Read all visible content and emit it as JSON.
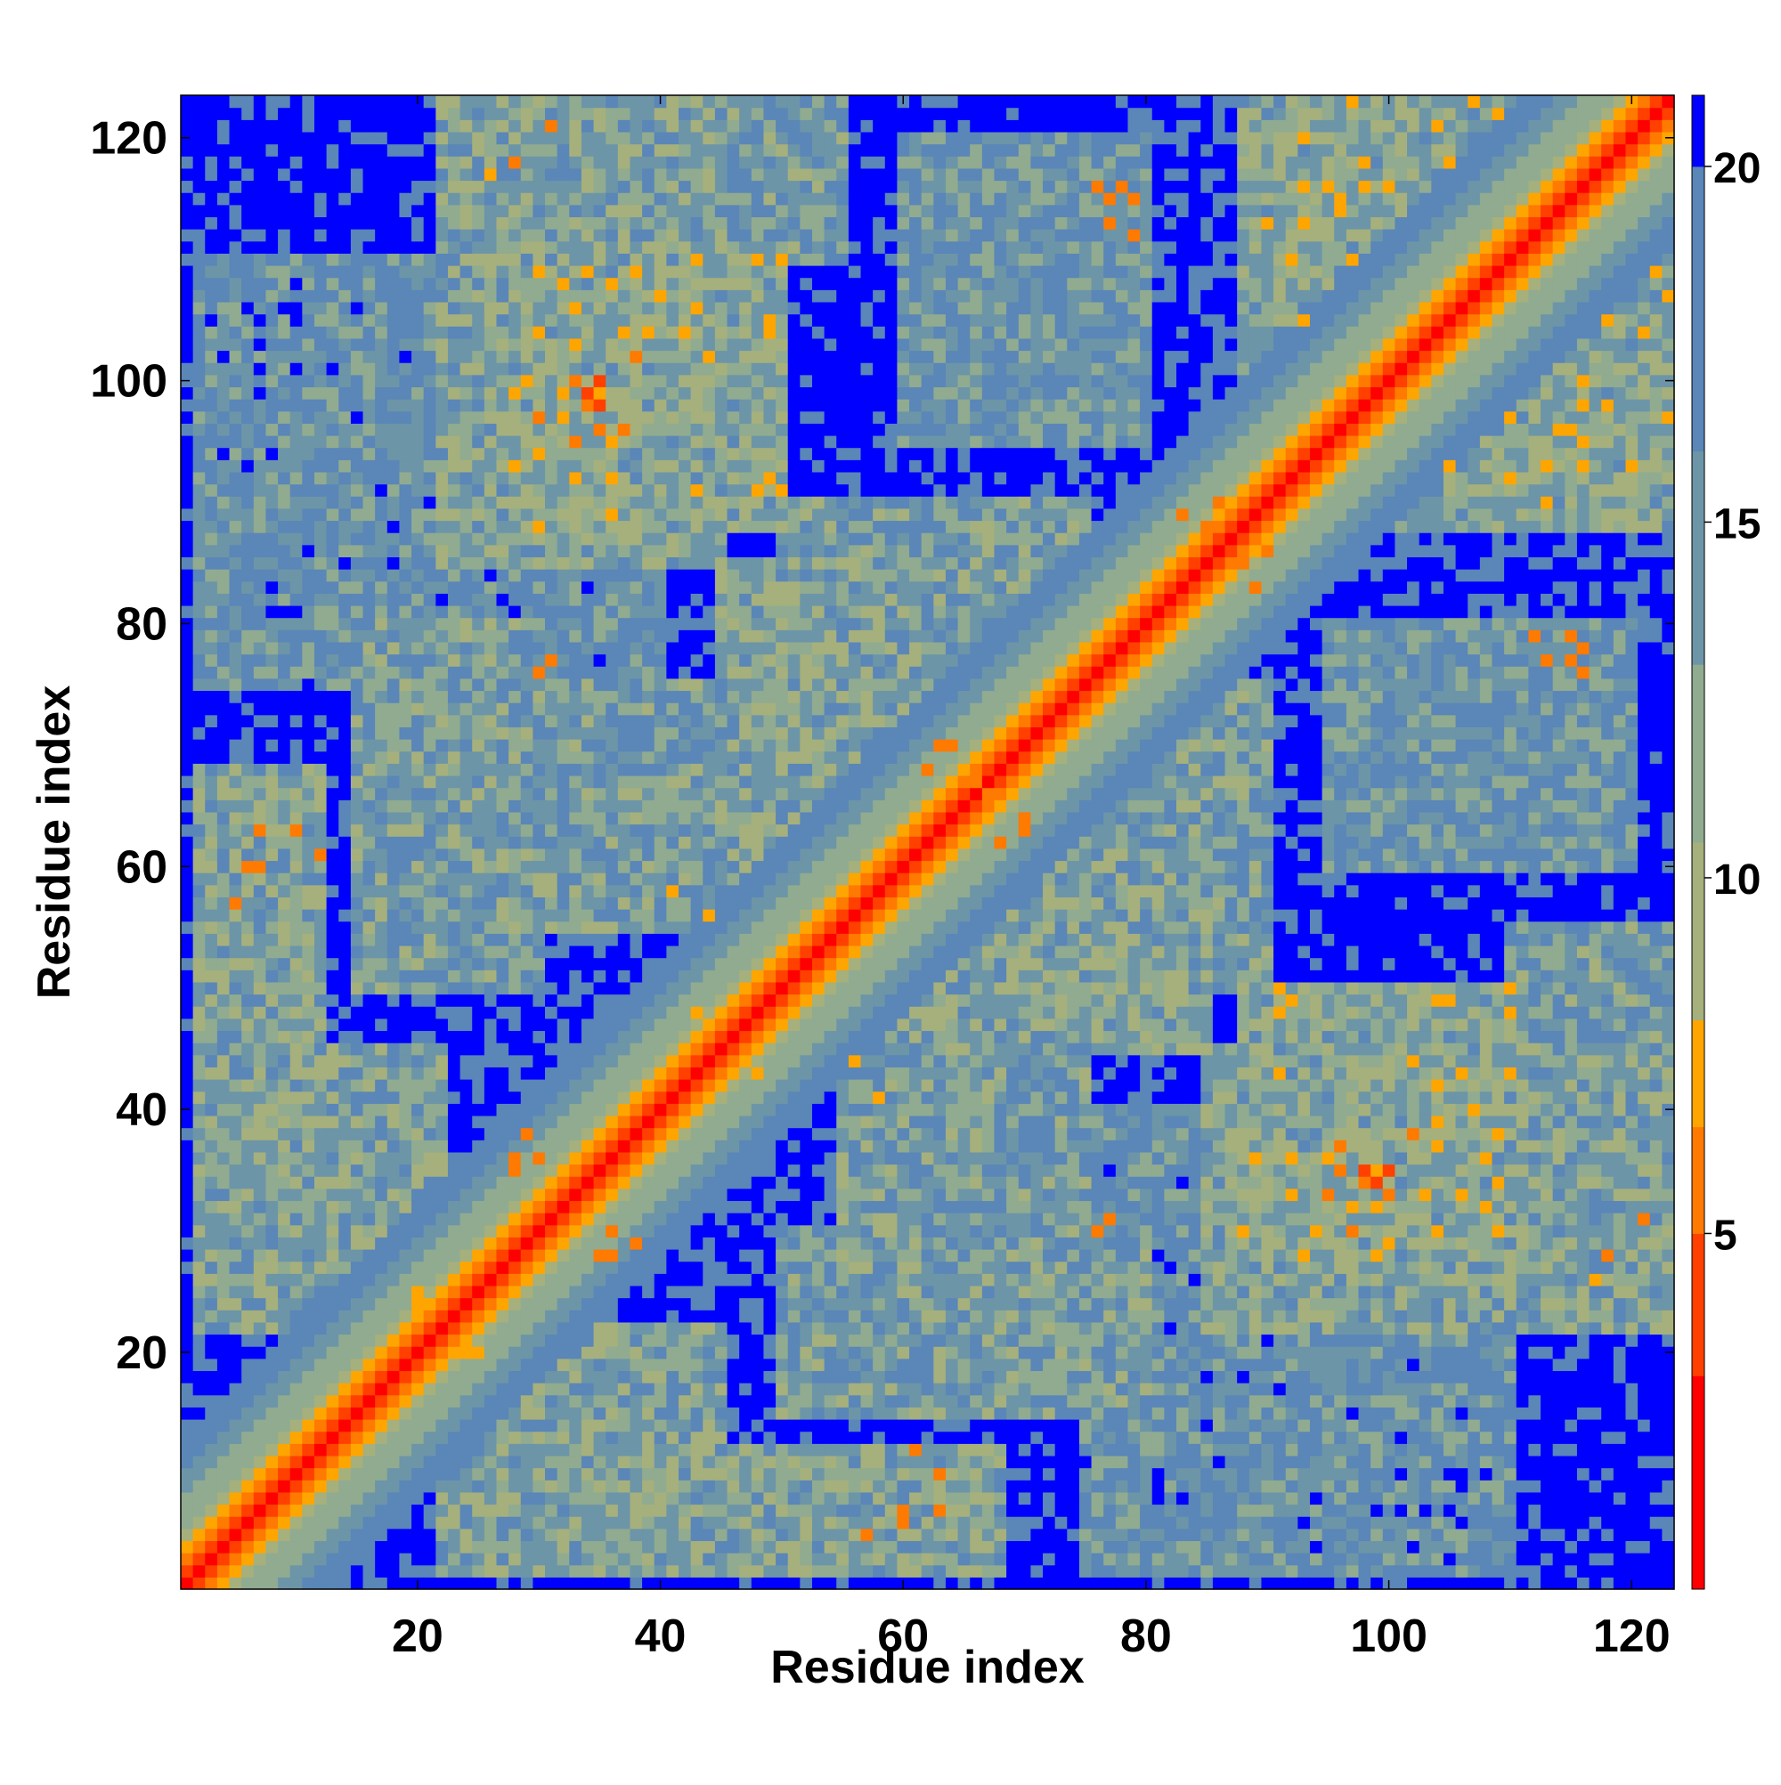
{
  "chart_data": {
    "type": "heatmap",
    "title": "",
    "xlabel": "Residue index",
    "ylabel": "Residue index",
    "n_residues": 123,
    "xlim": [
      0.5,
      123.5
    ],
    "ylim": [
      0.5,
      123.5
    ],
    "x_ticks": [
      20,
      40,
      60,
      80,
      100,
      120
    ],
    "y_ticks": [
      20,
      40,
      60,
      80,
      100,
      120
    ],
    "x_tick_labels": [
      "20",
      "40",
      "60",
      "80",
      "100",
      "120"
    ],
    "y_tick_labels": [
      "20",
      "40",
      "60",
      "80",
      "100",
      "120"
    ],
    "colorbar": {
      "range": [
        0,
        21
      ],
      "ticks": [
        5,
        10,
        15,
        20
      ],
      "tick_labels": [
        "5",
        "10",
        "15",
        "20"
      ]
    },
    "color_levels": [
      {
        "min": 0,
        "max": 3,
        "color": "#ff0000"
      },
      {
        "min": 3,
        "max": 5,
        "color": "#ff4000"
      },
      {
        "min": 5,
        "max": 6.5,
        "color": "#ff7a00"
      },
      {
        "min": 6.5,
        "max": 8,
        "color": "#ffa500"
      },
      {
        "min": 8,
        "max": 10.5,
        "color": "#a6b07c"
      },
      {
        "min": 10.5,
        "max": 13,
        "color": "#90ab90"
      },
      {
        "min": 13,
        "max": 16,
        "color": "#6d95a8"
      },
      {
        "min": 16,
        "max": 20,
        "color": "#5a86b8"
      },
      {
        "min": 20,
        "max": 21,
        "color": "#0000ff"
      }
    ],
    "diagonal_profile": [
      {
        "offset": 0,
        "value": 1.5
      },
      {
        "offset": 1,
        "value": 3.8
      },
      {
        "offset": 2,
        "value": 5.5
      },
      {
        "offset": 3,
        "value": 7
      },
      {
        "offset": 4,
        "value": 9
      },
      {
        "offset": 5,
        "value": 10.5
      },
      {
        "offset": 6,
        "value": 11.5
      },
      {
        "offset": 7,
        "value": 12.5
      },
      {
        "offset": 8,
        "value": 13.5
      },
      {
        "offset": 9,
        "value": 15
      },
      {
        "offset": 10,
        "value": 16
      },
      {
        "offset": 11,
        "value": 17
      },
      {
        "offset": 12,
        "value": 18
      }
    ],
    "far_contact_value": 21,
    "contact_regions": [
      {
        "x": [
          2,
          12
        ],
        "y": [
          35,
          68
        ],
        "value": 12.5
      },
      {
        "x": [
          28,
          50
        ],
        "y": [
          88,
          110
        ],
        "value": 12
      },
      {
        "x": [
          95,
          123
        ],
        "y": [
          88,
          110
        ],
        "value": 12
      },
      {
        "x": [
          85,
          123
        ],
        "y": [
          22,
          45
        ],
        "value": 13
      },
      {
        "x": [
          45,
          75
        ],
        "y": [
          50,
          85
        ],
        "value": 13
      },
      {
        "x": [
          22,
          45
        ],
        "y": [
          2,
          22
        ],
        "value": 13
      },
      {
        "x": [
          50,
          80
        ],
        "y": [
          15,
          30
        ],
        "value": 14
      },
      {
        "x": [
          75,
          90
        ],
        "y": [
          50,
          75
        ],
        "value": 14
      },
      {
        "x": [
          20,
          50
        ],
        "y": [
          55,
          75
        ],
        "value": 14
      },
      {
        "x": [
          60,
          80
        ],
        "y": [
          95,
          120
        ],
        "value": 15
      },
      {
        "x": [
          30,
          55
        ],
        "y": [
          110,
          123
        ],
        "value": 14.5
      },
      {
        "x": [
          2,
          40
        ],
        "y": [
          75,
          110
        ],
        "value": 16
      },
      {
        "x": [
          95,
          110
        ],
        "y": [
          5,
          20
        ],
        "value": 16.5
      }
    ],
    "close_contacts": [
      [
        98,
        35,
        4.5
      ],
      [
        99,
        34,
        4.5
      ],
      [
        100,
        35,
        4.5
      ],
      [
        96,
        37,
        6
      ],
      [
        95,
        33,
        6
      ],
      [
        102,
        38,
        6
      ],
      [
        35,
        96,
        6
      ],
      [
        34,
        98,
        6
      ],
      [
        36,
        95,
        7
      ],
      [
        33,
        100,
        6
      ],
      [
        30,
        97,
        6
      ],
      [
        115,
        79,
        5
      ],
      [
        115,
        77,
        5
      ],
      [
        112,
        79,
        6
      ],
      [
        78,
        116,
        6
      ],
      [
        76,
        116,
        6
      ],
      [
        77,
        113,
        6
      ],
      [
        35,
        28,
        6
      ],
      [
        38,
        29,
        6
      ],
      [
        36,
        30,
        6
      ],
      [
        28,
        36,
        6
      ],
      [
        29,
        38,
        6
      ],
      [
        62,
        68,
        6
      ],
      [
        64,
        70,
        6
      ],
      [
        66,
        67,
        6
      ],
      [
        68,
        62,
        6
      ],
      [
        70,
        63,
        6
      ],
      [
        10,
        63,
        6
      ],
      [
        12,
        61,
        6
      ],
      [
        7,
        60,
        6
      ],
      [
        63,
        10,
        6
      ],
      [
        61,
        12,
        6
      ],
      [
        57,
        5,
        6
      ],
      [
        60,
        6,
        6
      ],
      [
        63,
        7,
        6
      ],
      [
        5,
        57,
        6
      ],
      [
        6,
        60,
        6
      ],
      [
        76,
        30,
        6
      ],
      [
        77,
        31,
        6
      ],
      [
        30,
        76,
        6
      ],
      [
        31,
        77,
        6
      ],
      [
        89,
        83,
        6
      ],
      [
        90,
        86,
        6
      ],
      [
        85,
        88,
        6
      ],
      [
        118,
        28,
        6
      ],
      [
        121,
        31,
        6
      ],
      [
        117,
        26,
        7
      ],
      [
        28,
        118,
        6
      ],
      [
        31,
        121,
        6
      ],
      [
        47,
        45,
        6
      ],
      [
        48,
        43,
        7
      ],
      [
        43,
        48,
        7
      ],
      [
        41,
        58,
        7
      ],
      [
        44,
        56,
        7
      ],
      [
        58,
        41,
        7
      ],
      [
        25,
        20,
        7
      ],
      [
        22,
        25,
        7
      ],
      [
        20,
        24,
        7
      ],
      [
        105,
        93,
        7
      ],
      [
        110,
        97,
        7
      ],
      [
        93,
        105,
        7
      ]
    ]
  }
}
